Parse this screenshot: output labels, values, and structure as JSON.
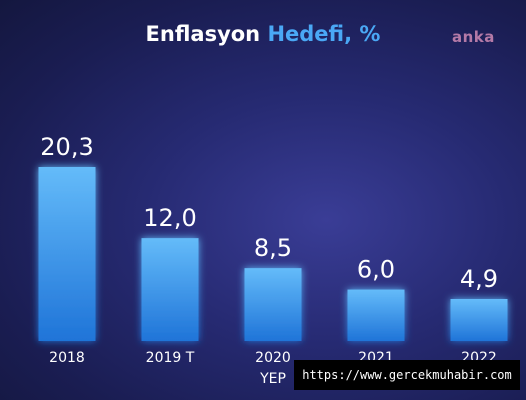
{
  "title": {
    "main": "Enflasyon ",
    "accent": "Hedefi, %"
  },
  "logo": "anka",
  "watermark": "https://www.gercekmuhabir.com",
  "colors": {
    "background": "#1e2160",
    "bar_top": "#64bbf9",
    "bar_bottom": "#1f74d8",
    "title_accent": "#4aa8f5",
    "text": "#ffffff"
  },
  "chart_data": {
    "type": "bar",
    "categories": [
      "2018",
      "2019 T",
      "2020\nYEP",
      "2021\nYEP",
      "2022\nYEP"
    ],
    "values": [
      20.3,
      12.0,
      8.5,
      6.0,
      4.9
    ],
    "data_labels": [
      "20,3",
      "12,0",
      "8,5",
      "6,0",
      "4,9"
    ],
    "title": "Enflasyon Hedefi, %",
    "xlabel": "",
    "ylabel": "",
    "ylim": [
      0,
      20.3
    ],
    "grid": false,
    "legend": "none"
  }
}
